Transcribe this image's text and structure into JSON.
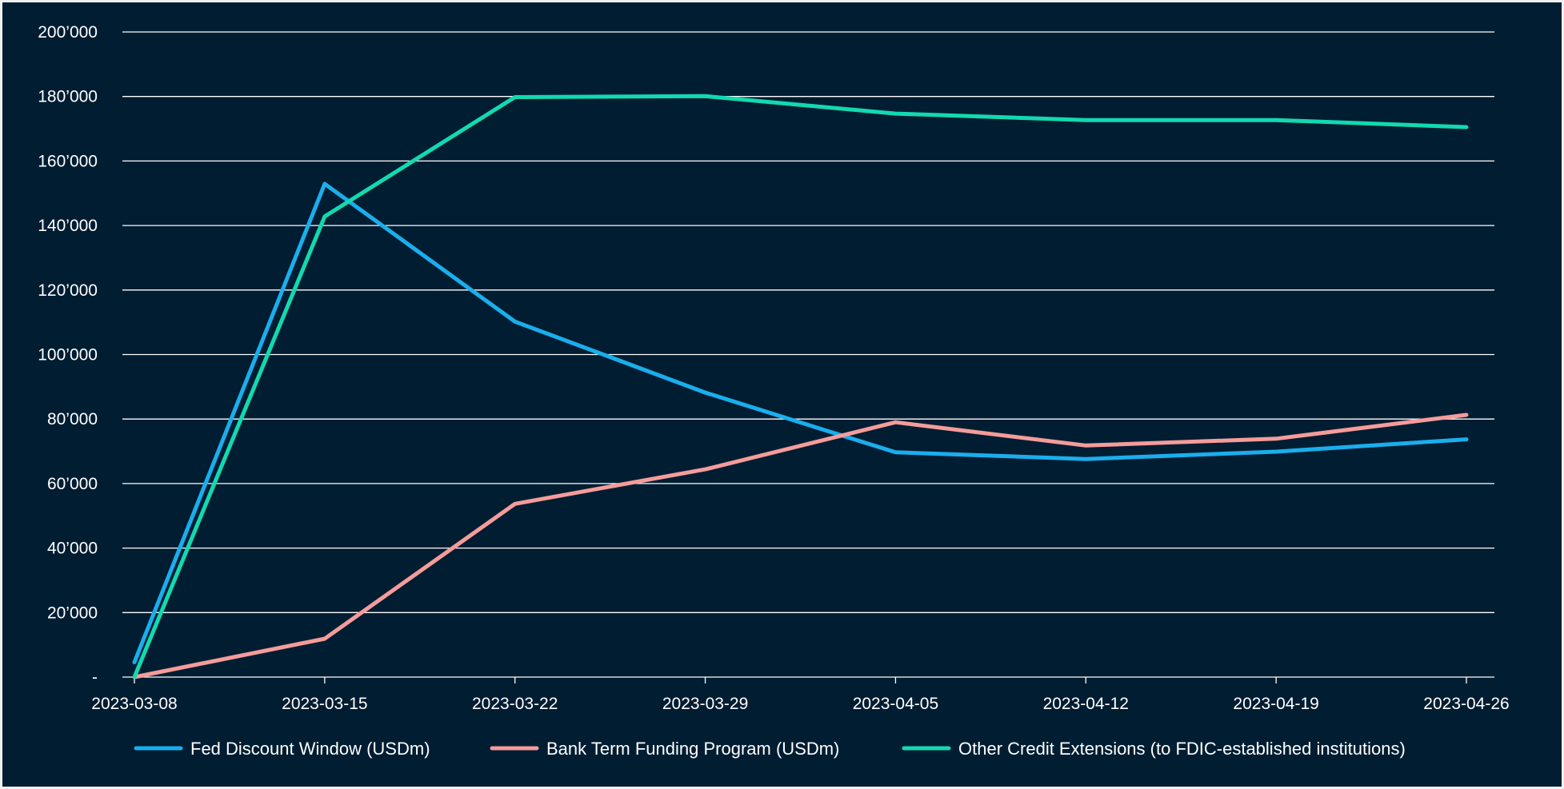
{
  "chart_data": {
    "type": "line",
    "title": "",
    "xlabel": "",
    "ylabel": "",
    "x": [
      "2023-03-08",
      "2023-03-15",
      "2023-03-22",
      "2023-03-29",
      "2023-04-05",
      "2023-04-12",
      "2023-04-19",
      "2023-04-26"
    ],
    "ylim": [
      0,
      200000
    ],
    "y_ticks": [
      0,
      20000,
      40000,
      60000,
      80000,
      100000,
      120000,
      140000,
      160000,
      180000,
      200000
    ],
    "y_tick_labels": [
      "-",
      "20’000",
      "40’000",
      "60’000",
      "80’000",
      "100’000",
      "120’000",
      "140’000",
      "160’000",
      "180’000",
      "200’000"
    ],
    "grid": true,
    "legend_position": "bottom",
    "series": [
      {
        "name": "Fed Discount Window (USDm)",
        "color": "#1aaeec",
        "values": [
          4600,
          152900,
          110200,
          88200,
          69700,
          67600,
          69900,
          73700
        ]
      },
      {
        "name": "Bank Term Funding Program (USDm)",
        "color": "#f59c9a",
        "values": [
          0,
          11900,
          53700,
          64400,
          79000,
          71800,
          73900,
          81300
        ]
      },
      {
        "name": "Other Credit Extensions (to FDIC-established institutions)",
        "color": "#12d9b0",
        "values": [
          0,
          142800,
          179800,
          180100,
          174700,
          172700,
          172700,
          170500
        ]
      }
    ]
  },
  "colors": {
    "background": "#001d32",
    "grid": "#ffffff",
    "text": "#ffffff",
    "border": "#f0f0f0"
  }
}
